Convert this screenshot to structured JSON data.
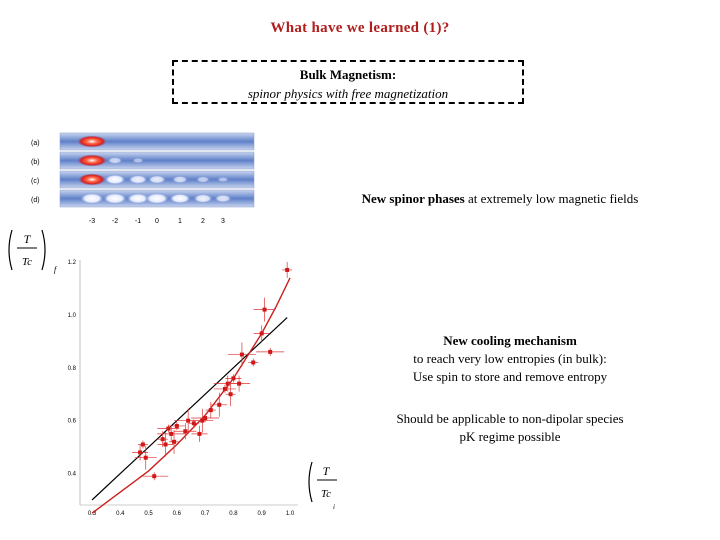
{
  "title": "What have we learned (1)?",
  "box": {
    "heading": "Bulk Magnetism:",
    "subheading": "spinor physics with free magnetization"
  },
  "images": {
    "row_labels": [
      "(a)",
      "(b)",
      "(c)",
      "(d)"
    ],
    "axis_labels": [
      "-3",
      "-2",
      "-1",
      "0",
      "1",
      "2",
      "3"
    ]
  },
  "point1": {
    "bold": "New spinor phases",
    "rest": " at extremely low magnetic fields"
  },
  "point2": {
    "bold": "New cooling mechanism",
    "line2": "to reach very low entropies (in bulk):",
    "line3": "Use spin to store and remove entropy"
  },
  "point3": {
    "line1": "Should be applicable to non-dipolar species",
    "line2": "pK regime possible"
  },
  "chart_data": {
    "type": "scatter",
    "ylabel": {
      "num": "T",
      "den": "Tc",
      "sub": "f"
    },
    "xlabel": {
      "num": "T",
      "den": "Tc",
      "sub": "i"
    },
    "xlim": [
      0.3,
      1.0
    ],
    "ylim": [
      0.3,
      1.2
    ],
    "xticks": [
      "0.3",
      "0.4",
      "0.5",
      "0.6",
      "0.7",
      "0.8",
      "0.9",
      "1.0"
    ],
    "yticks": [
      "0.4",
      "0.6",
      "0.8",
      "1.0",
      "1.2"
    ],
    "points": [
      {
        "x": 0.48,
        "y": 0.51
      },
      {
        "x": 0.47,
        "y": 0.48
      },
      {
        "x": 0.49,
        "y": 0.46
      },
      {
        "x": 0.52,
        "y": 0.39
      },
      {
        "x": 0.55,
        "y": 0.53
      },
      {
        "x": 0.56,
        "y": 0.51
      },
      {
        "x": 0.57,
        "y": 0.57
      },
      {
        "x": 0.58,
        "y": 0.55
      },
      {
        "x": 0.59,
        "y": 0.52
      },
      {
        "x": 0.6,
        "y": 0.58
      },
      {
        "x": 0.63,
        "y": 0.56
      },
      {
        "x": 0.64,
        "y": 0.6
      },
      {
        "x": 0.66,
        "y": 0.59
      },
      {
        "x": 0.68,
        "y": 0.55
      },
      {
        "x": 0.69,
        "y": 0.6
      },
      {
        "x": 0.7,
        "y": 0.61
      },
      {
        "x": 0.72,
        "y": 0.64
      },
      {
        "x": 0.75,
        "y": 0.66
      },
      {
        "x": 0.77,
        "y": 0.72
      },
      {
        "x": 0.78,
        "y": 0.74
      },
      {
        "x": 0.79,
        "y": 0.7
      },
      {
        "x": 0.8,
        "y": 0.76
      },
      {
        "x": 0.82,
        "y": 0.74
      },
      {
        "x": 0.83,
        "y": 0.85
      },
      {
        "x": 0.87,
        "y": 0.82
      },
      {
        "x": 0.9,
        "y": 0.93
      },
      {
        "x": 0.91,
        "y": 1.02
      },
      {
        "x": 0.93,
        "y": 0.86
      },
      {
        "x": 0.99,
        "y": 1.17
      }
    ],
    "curve_line": [
      {
        "x": 0.3,
        "y": 0.3
      },
      {
        "x": 0.99,
        "y": 0.99
      }
    ],
    "curve_fit": [
      {
        "x": 0.3,
        "y": 0.25
      },
      {
        "x": 0.4,
        "y": 0.33
      },
      {
        "x": 0.5,
        "y": 0.41
      },
      {
        "x": 0.6,
        "y": 0.51
      },
      {
        "x": 0.7,
        "y": 0.62
      },
      {
        "x": 0.8,
        "y": 0.76
      },
      {
        "x": 0.9,
        "y": 0.93
      },
      {
        "x": 0.95,
        "y": 1.03
      },
      {
        "x": 1.0,
        "y": 1.14
      }
    ]
  }
}
